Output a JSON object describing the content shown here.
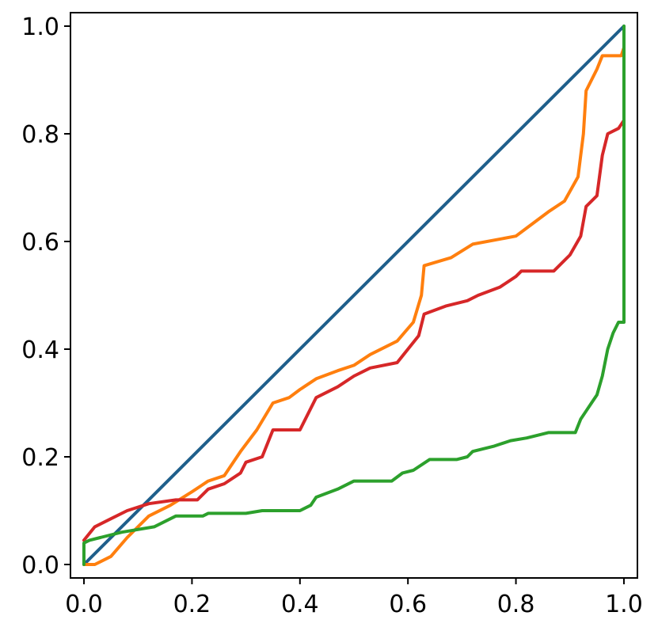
{
  "chart_data": {
    "type": "line",
    "title": "",
    "xlabel": "",
    "ylabel": "",
    "xlim": [
      -0.025,
      1.025
    ],
    "ylim": [
      -0.025,
      1.025
    ],
    "grid": false,
    "x_ticks": [
      0.0,
      0.2,
      0.4,
      0.6,
      0.8,
      1.0
    ],
    "y_ticks": [
      0.0,
      0.2,
      0.4,
      0.6,
      0.8,
      1.0
    ],
    "x_tick_labels": [
      "0.0",
      "0.2",
      "0.4",
      "0.6",
      "0.8",
      "1.0"
    ],
    "y_tick_labels": [
      "0.0",
      "0.2",
      "0.4",
      "0.6",
      "0.8",
      "1.0"
    ],
    "series": [
      {
        "color": "#1f5f8b",
        "points": [
          [
            0.0,
            0.0
          ],
          [
            1.0,
            1.0
          ]
        ]
      },
      {
        "color": "#ff7f0e",
        "points": [
          [
            0.0,
            0.0
          ],
          [
            0.02,
            0.0
          ],
          [
            0.05,
            0.015
          ],
          [
            0.08,
            0.05
          ],
          [
            0.12,
            0.09
          ],
          [
            0.16,
            0.11
          ],
          [
            0.2,
            0.135
          ],
          [
            0.23,
            0.155
          ],
          [
            0.26,
            0.165
          ],
          [
            0.29,
            0.21
          ],
          [
            0.32,
            0.25
          ],
          [
            0.35,
            0.3
          ],
          [
            0.38,
            0.31
          ],
          [
            0.4,
            0.325
          ],
          [
            0.43,
            0.345
          ],
          [
            0.47,
            0.36
          ],
          [
            0.5,
            0.37
          ],
          [
            0.53,
            0.39
          ],
          [
            0.58,
            0.415
          ],
          [
            0.61,
            0.45
          ],
          [
            0.625,
            0.5
          ],
          [
            0.63,
            0.555
          ],
          [
            0.68,
            0.57
          ],
          [
            0.72,
            0.595
          ],
          [
            0.8,
            0.61
          ],
          [
            0.82,
            0.625
          ],
          [
            0.86,
            0.655
          ],
          [
            0.89,
            0.675
          ],
          [
            0.915,
            0.72
          ],
          [
            0.925,
            0.8
          ],
          [
            0.93,
            0.88
          ],
          [
            0.95,
            0.92
          ],
          [
            0.96,
            0.945
          ],
          [
            0.995,
            0.945
          ],
          [
            1.0,
            0.96
          ]
        ]
      },
      {
        "color": "#d62728",
        "points": [
          [
            0.0,
            0.045
          ],
          [
            0.02,
            0.07
          ],
          [
            0.05,
            0.085
          ],
          [
            0.08,
            0.1
          ],
          [
            0.12,
            0.113
          ],
          [
            0.17,
            0.12
          ],
          [
            0.21,
            0.12
          ],
          [
            0.23,
            0.14
          ],
          [
            0.26,
            0.15
          ],
          [
            0.29,
            0.17
          ],
          [
            0.3,
            0.19
          ],
          [
            0.33,
            0.2
          ],
          [
            0.35,
            0.25
          ],
          [
            0.4,
            0.25
          ],
          [
            0.43,
            0.31
          ],
          [
            0.47,
            0.33
          ],
          [
            0.5,
            0.35
          ],
          [
            0.53,
            0.365
          ],
          [
            0.58,
            0.375
          ],
          [
            0.6,
            0.4
          ],
          [
            0.62,
            0.425
          ],
          [
            0.63,
            0.465
          ],
          [
            0.67,
            0.48
          ],
          [
            0.71,
            0.49
          ],
          [
            0.73,
            0.5
          ],
          [
            0.77,
            0.515
          ],
          [
            0.8,
            0.535
          ],
          [
            0.81,
            0.545
          ],
          [
            0.87,
            0.545
          ],
          [
            0.9,
            0.575
          ],
          [
            0.92,
            0.61
          ],
          [
            0.93,
            0.665
          ],
          [
            0.95,
            0.685
          ],
          [
            0.96,
            0.76
          ],
          [
            0.97,
            0.8
          ],
          [
            0.99,
            0.81
          ],
          [
            1.0,
            0.825
          ]
        ]
      },
      {
        "color": "#2ca02c",
        "points": [
          [
            0.0,
            0.0
          ],
          [
            0.0,
            0.04
          ],
          [
            0.01,
            0.045
          ],
          [
            0.03,
            0.05
          ],
          [
            0.07,
            0.06
          ],
          [
            0.13,
            0.07
          ],
          [
            0.17,
            0.09
          ],
          [
            0.22,
            0.09
          ],
          [
            0.23,
            0.095
          ],
          [
            0.3,
            0.095
          ],
          [
            0.33,
            0.1
          ],
          [
            0.4,
            0.1
          ],
          [
            0.42,
            0.11
          ],
          [
            0.43,
            0.125
          ],
          [
            0.47,
            0.14
          ],
          [
            0.5,
            0.155
          ],
          [
            0.57,
            0.155
          ],
          [
            0.59,
            0.17
          ],
          [
            0.61,
            0.175
          ],
          [
            0.64,
            0.195
          ],
          [
            0.69,
            0.195
          ],
          [
            0.71,
            0.2
          ],
          [
            0.72,
            0.21
          ],
          [
            0.76,
            0.22
          ],
          [
            0.79,
            0.23
          ],
          [
            0.82,
            0.235
          ],
          [
            0.86,
            0.245
          ],
          [
            0.91,
            0.245
          ],
          [
            0.92,
            0.27
          ],
          [
            0.93,
            0.285
          ],
          [
            0.94,
            0.3
          ],
          [
            0.95,
            0.315
          ],
          [
            0.96,
            0.35
          ],
          [
            0.97,
            0.4
          ],
          [
            0.98,
            0.43
          ],
          [
            0.99,
            0.45
          ],
          [
            1.0,
            0.45
          ],
          [
            1.0,
            1.0
          ]
        ]
      }
    ]
  }
}
